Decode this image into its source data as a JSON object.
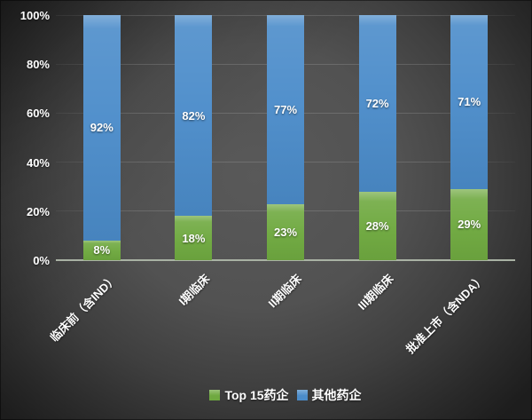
{
  "chart_data": {
    "type": "bar",
    "variant": "stacked-100-percent",
    "title": "",
    "xlabel": "",
    "ylabel": "",
    "categories": [
      "临床前（含IND）",
      "I期临床",
      "II期临床",
      "III期临床",
      "批准上市（含NDA）"
    ],
    "series": [
      {
        "name": "Top 15药企",
        "color": "#6fa940",
        "values": [
          8,
          18,
          23,
          28,
          29
        ],
        "labels": [
          "8%",
          "18%",
          "23%",
          "28%",
          "29%"
        ]
      },
      {
        "name": "其他药企",
        "color": "#4b8cca",
        "values": [
          92,
          82,
          77,
          72,
          71
        ],
        "labels": [
          "92%",
          "82%",
          "77%",
          "72%",
          "71%"
        ]
      }
    ],
    "ylim": [
      0,
      100
    ],
    "yticks": [
      "0%",
      "20%",
      "40%",
      "60%",
      "80%",
      "100%"
    ],
    "grid": true,
    "legend_position": "bottom"
  },
  "colors": {
    "background_center": "#575757",
    "background_edge": "#1d1d1d",
    "axis_line": "#a9b2a4",
    "gridline": "rgba(255,255,255,0.13)",
    "text": "#ffffff"
  }
}
